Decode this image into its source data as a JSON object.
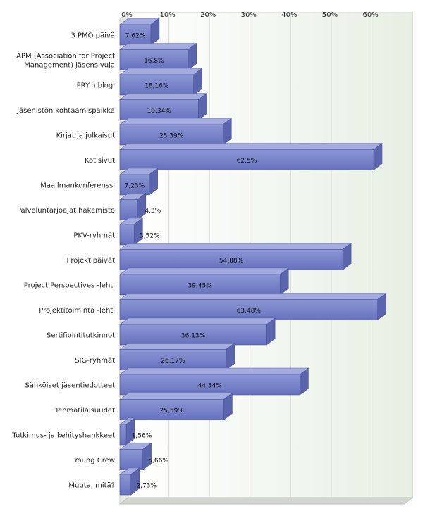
{
  "chart_data": {
    "type": "bar",
    "orientation": "horizontal",
    "style": "3d",
    "xlim": [
      0,
      70
    ],
    "tick_values": [
      0,
      10,
      20,
      30,
      40,
      50,
      60
    ],
    "tick_labels": [
      "0%",
      "10%",
      "20%",
      "30%",
      "40%",
      "50%",
      "60%"
    ],
    "grid": true,
    "bar_color": "#7b86c9",
    "categories": [
      [
        "3 PMO päivä"
      ],
      [
        "APM (Association for Project",
        "Management) jäsensivuja"
      ],
      [
        "PRY:n blogi"
      ],
      [
        "Jäsenistön kohtaamispaikka"
      ],
      [
        "Kirjat ja julkaisut"
      ],
      [
        "Kotisivut"
      ],
      [
        "Maailmankonferenssi"
      ],
      [
        "Palveluntarjoajat hakemisto"
      ],
      [
        "PKV-ryhmät"
      ],
      [
        "Projektipäivät"
      ],
      [
        "Project Perspectives -lehti"
      ],
      [
        "Projektitoiminta -lehti"
      ],
      [
        "Sertifiointitutkinnot"
      ],
      [
        "SIG-ryhmät"
      ],
      [
        "Sähköiset jäsentiedotteet"
      ],
      [
        "Teematilaisuudet"
      ],
      [
        "Tutkimus- ja kehityshankkeet"
      ],
      [
        "Young Crew"
      ],
      [
        "Muuta, mitä?"
      ]
    ],
    "values": [
      7.62,
      16.8,
      18.16,
      19.34,
      25.39,
      62.5,
      7.23,
      4.3,
      3.52,
      54.88,
      39.45,
      63.48,
      36.13,
      26.17,
      44.34,
      25.59,
      1.56,
      5.66,
      2.73
    ],
    "value_labels": [
      "7,62%",
      "16,8%",
      "18,16%",
      "19,34%",
      "25,39%",
      "62,5%",
      "7,23%",
      "4,3%",
      "3,52%",
      "54,88%",
      "39,45%",
      "63,48%",
      "36,13%",
      "26,17%",
      "44,34%",
      "25,59%",
      "1,56%",
      "5,66%",
      "2,73%"
    ]
  }
}
